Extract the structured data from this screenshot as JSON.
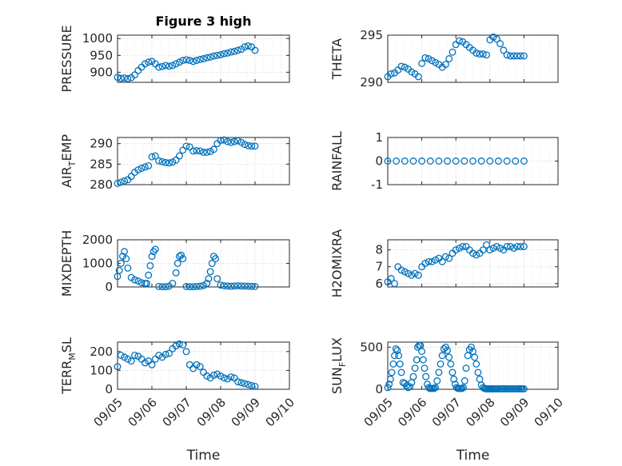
{
  "figure": {
    "title": "Figure 3 high",
    "xlabel": "Time",
    "x_ticks": [
      "09/05",
      "09/06",
      "09/07",
      "09/08",
      "09/09",
      "09/10"
    ],
    "marker_color": "#0072BD"
  },
  "chart_data": [
    {
      "type": "scatter",
      "marker": "circle",
      "title": "Figure 3 high",
      "ylabel": "PRESSURE",
      "ylim": [
        870,
        1010
      ],
      "yticks": [
        "900",
        "950",
        "1000"
      ],
      "xlim": [
        "09/05",
        "09/10"
      ],
      "grid": true,
      "x": [
        0.0,
        0.1,
        0.2,
        0.3,
        0.4,
        0.5,
        0.6,
        0.7,
        0.8,
        0.9,
        1.0,
        1.1,
        1.2,
        1.3,
        1.4,
        1.5,
        1.6,
        1.7,
        1.8,
        1.9,
        2.0,
        2.1,
        2.2,
        2.3,
        2.4,
        2.5,
        2.6,
        2.7,
        2.8,
        2.9,
        3.0,
        3.1,
        3.2,
        3.3,
        3.4,
        3.5,
        3.6,
        3.7,
        3.8,
        3.9,
        4.0
      ],
      "y": [
        885,
        882,
        883,
        881,
        884,
        892,
        905,
        915,
        925,
        930,
        932,
        925,
        915,
        917,
        920,
        918,
        920,
        925,
        930,
        935,
        937,
        935,
        932,
        935,
        938,
        940,
        943,
        945,
        948,
        950,
        952,
        955,
        957,
        960,
        962,
        965,
        968,
        975,
        978,
        975,
        965
      ]
    },
    {
      "type": "scatter",
      "marker": "circle",
      "ylabel": "THETA",
      "ylim": [
        290,
        295
      ],
      "yticks": [
        "290",
        "295"
      ],
      "xlim": [
        "09/05",
        "09/10"
      ],
      "grid": true,
      "x": [
        0.0,
        0.1,
        0.2,
        0.3,
        0.4,
        0.5,
        0.6,
        0.7,
        0.8,
        0.9,
        1.0,
        1.1,
        1.2,
        1.3,
        1.4,
        1.5,
        1.6,
        1.7,
        1.8,
        1.9,
        2.0,
        2.1,
        2.2,
        2.3,
        2.4,
        2.5,
        2.6,
        2.7,
        2.8,
        2.9,
        3.0,
        3.1,
        3.2,
        3.3,
        3.4,
        3.5,
        3.6,
        3.7,
        3.8,
        3.9,
        4.0
      ],
      "y": [
        290.6,
        290.9,
        291.0,
        291.3,
        291.7,
        291.6,
        291.4,
        291.1,
        290.9,
        290.6,
        292.0,
        292.6,
        292.5,
        292.3,
        292.1,
        291.9,
        291.6,
        291.9,
        292.5,
        293.2,
        294.0,
        294.4,
        294.3,
        294.0,
        293.7,
        293.4,
        293.1,
        293.0,
        293.0,
        292.9,
        294.5,
        294.8,
        294.6,
        294.1,
        293.4,
        292.9,
        292.8,
        292.8,
        292.8,
        292.8,
        292.8
      ]
    },
    {
      "type": "scatter",
      "marker": "circle",
      "ylabel": "AIR_TEMP",
      "ylim": [
        280,
        291.5
      ],
      "yticks": [
        "280",
        "285",
        "290"
      ],
      "xlim": [
        "09/05",
        "09/10"
      ],
      "grid": true,
      "x": [
        0.0,
        0.1,
        0.2,
        0.3,
        0.4,
        0.5,
        0.6,
        0.7,
        0.8,
        0.9,
        1.0,
        1.1,
        1.2,
        1.3,
        1.4,
        1.5,
        1.6,
        1.7,
        1.8,
        1.9,
        2.0,
        2.1,
        2.2,
        2.3,
        2.4,
        2.5,
        2.6,
        2.7,
        2.8,
        2.9,
        3.0,
        3.1,
        3.2,
        3.3,
        3.4,
        3.5,
        3.6,
        3.7,
        3.8,
        3.9,
        4.0
      ],
      "y": [
        280.3,
        280.6,
        280.9,
        281.2,
        282.0,
        283.0,
        283.6,
        284.0,
        284.3,
        284.6,
        286.8,
        287.0,
        285.8,
        285.6,
        285.4,
        285.3,
        285.5,
        286.0,
        287.0,
        288.4,
        289.4,
        289.2,
        288.2,
        288.3,
        288.2,
        287.9,
        287.9,
        288.1,
        288.6,
        290.0,
        290.8,
        290.9,
        290.5,
        290.3,
        290.5,
        290.7,
        290.3,
        289.8,
        289.5,
        289.4,
        289.4
      ]
    },
    {
      "type": "scatter",
      "marker": "circle",
      "ylabel": "RAINFALL",
      "ylim": [
        -1,
        1
      ],
      "yticks": [
        "-1",
        "0",
        "1"
      ],
      "xlim": [
        "09/05",
        "09/10"
      ],
      "grid": true,
      "x": [
        0.0,
        0.25,
        0.5,
        0.75,
        1.0,
        1.25,
        1.5,
        1.75,
        2.0,
        2.25,
        2.5,
        2.75,
        3.0,
        3.25,
        3.5,
        3.75,
        4.0
      ],
      "y": [
        0,
        0,
        0,
        0,
        0,
        0,
        0,
        0,
        0,
        0,
        0,
        0,
        0,
        0,
        0,
        0,
        0
      ]
    },
    {
      "type": "scatter",
      "marker": "circle",
      "ylabel": "MIXDEPTH",
      "ylim": [
        0,
        2000
      ],
      "yticks": [
        "0",
        "1000",
        "2000"
      ],
      "xlim": [
        "09/05",
        "09/10"
      ],
      "grid": true,
      "x": [
        0.0,
        0.05,
        0.1,
        0.15,
        0.2,
        0.25,
        0.3,
        0.4,
        0.5,
        0.6,
        0.7,
        0.8,
        0.85,
        0.9,
        0.95,
        1.0,
        1.05,
        1.1,
        1.2,
        1.3,
        1.4,
        1.5,
        1.6,
        1.7,
        1.75,
        1.8,
        1.85,
        1.9,
        2.0,
        2.1,
        2.2,
        2.3,
        2.4,
        2.5,
        2.6,
        2.65,
        2.7,
        2.75,
        2.8,
        2.85,
        2.9,
        3.0,
        3.1,
        3.2,
        3.3,
        3.4,
        3.5,
        3.6,
        3.7,
        3.8,
        3.9,
        4.0
      ],
      "y": [
        450,
        700,
        1000,
        1300,
        1500,
        1200,
        800,
        400,
        300,
        250,
        180,
        150,
        150,
        500,
        900,
        1300,
        1500,
        1600,
        20,
        10,
        10,
        30,
        150,
        600,
        1000,
        1300,
        1350,
        1200,
        20,
        10,
        10,
        20,
        30,
        60,
        150,
        350,
        650,
        1000,
        1300,
        1200,
        350,
        80,
        50,
        40,
        30,
        40,
        50,
        40,
        40,
        30,
        25,
        20
      ]
    },
    {
      "type": "scatter",
      "marker": "circle",
      "ylabel": "H2OMIXRA",
      "ylim": [
        5.8,
        8.6
      ],
      "yticks": [
        "6",
        "7",
        "8"
      ],
      "xlim": [
        "09/05",
        "09/10"
      ],
      "grid": true,
      "x": [
        0.0,
        0.1,
        0.2,
        0.3,
        0.4,
        0.5,
        0.6,
        0.7,
        0.8,
        0.9,
        1.0,
        1.1,
        1.2,
        1.3,
        1.4,
        1.5,
        1.6,
        1.7,
        1.8,
        1.9,
        2.0,
        2.1,
        2.2,
        2.3,
        2.4,
        2.5,
        2.6,
        2.7,
        2.8,
        2.9,
        3.0,
        3.1,
        3.2,
        3.3,
        3.4,
        3.5,
        3.6,
        3.7,
        3.8,
        3.9,
        4.0
      ],
      "y": [
        6.1,
        6.3,
        6.0,
        7.0,
        6.8,
        6.7,
        6.6,
        6.5,
        6.6,
        6.5,
        7.0,
        7.2,
        7.3,
        7.3,
        7.4,
        7.5,
        7.3,
        7.6,
        7.5,
        7.8,
        8.0,
        8.1,
        8.2,
        8.2,
        8.0,
        7.8,
        7.7,
        7.8,
        8.0,
        8.3,
        8.0,
        8.1,
        8.2,
        8.1,
        8.0,
        8.2,
        8.2,
        8.1,
        8.2,
        8.2,
        8.2
      ]
    },
    {
      "type": "scatter",
      "marker": "circle",
      "ylabel": "TERR_MSL",
      "ylim": [
        0,
        250
      ],
      "yticks": [
        "0",
        "100",
        "200"
      ],
      "xlim": [
        "09/05",
        "09/10"
      ],
      "grid": true,
      "x": [
        0.0,
        0.1,
        0.2,
        0.3,
        0.4,
        0.5,
        0.6,
        0.7,
        0.8,
        0.9,
        1.0,
        1.1,
        1.2,
        1.3,
        1.4,
        1.5,
        1.6,
        1.7,
        1.8,
        1.9,
        2.0,
        2.1,
        2.2,
        2.3,
        2.4,
        2.5,
        2.6,
        2.7,
        2.8,
        2.9,
        3.0,
        3.1,
        3.2,
        3.3,
        3.4,
        3.5,
        3.6,
        3.7,
        3.8,
        3.9,
        4.0
      ],
      "y": [
        120,
        180,
        170,
        160,
        150,
        180,
        175,
        160,
        140,
        150,
        130,
        160,
        180,
        170,
        185,
        190,
        215,
        230,
        240,
        235,
        200,
        130,
        110,
        130,
        120,
        90,
        70,
        60,
        75,
        80,
        70,
        60,
        55,
        65,
        60,
        40,
        35,
        30,
        25,
        20,
        15
      ]
    },
    {
      "type": "scatter",
      "marker": "circle",
      "ylabel": "SUN_FLUX",
      "ylim": [
        0,
        560
      ],
      "yticks": [
        "0",
        "500"
      ],
      "xlim": [
        "09/05",
        "09/10"
      ],
      "grid": true,
      "x": [
        0.0,
        0.04,
        0.08,
        0.12,
        0.16,
        0.2,
        0.24,
        0.28,
        0.32,
        0.36,
        0.4,
        0.45,
        0.5,
        0.55,
        0.6,
        0.65,
        0.7,
        0.75,
        0.8,
        0.85,
        0.88,
        0.92,
        0.96,
        1.0,
        1.04,
        1.08,
        1.12,
        1.16,
        1.2,
        1.24,
        1.28,
        1.32,
        1.36,
        1.4,
        1.45,
        1.5,
        1.55,
        1.6,
        1.65,
        1.7,
        1.75,
        1.8,
        1.85,
        1.9,
        1.94,
        1.98,
        2.02,
        2.06,
        2.1,
        2.14,
        2.18,
        2.22,
        2.26,
        2.3,
        2.35,
        2.4,
        2.45,
        2.5,
        2.55,
        2.6,
        2.65,
        2.7,
        2.75,
        2.8,
        2.84,
        2.88,
        2.92,
        2.96,
        3.0,
        3.04,
        3.08,
        3.12,
        3.16,
        3.2,
        3.25,
        3.3,
        3.35,
        3.4,
        3.45,
        3.5,
        3.55,
        3.6,
        3.65,
        3.7,
        3.75,
        3.8,
        3.85,
        3.9,
        3.95,
        4.0
      ],
      "y": [
        20,
        60,
        120,
        200,
        300,
        400,
        480,
        460,
        400,
        300,
        200,
        80,
        70,
        40,
        20,
        30,
        80,
        150,
        250,
        350,
        500,
        520,
        520,
        450,
        350,
        250,
        150,
        60,
        20,
        10,
        10,
        10,
        10,
        20,
        100,
        200,
        300,
        400,
        480,
        500,
        460,
        380,
        300,
        200,
        120,
        60,
        20,
        10,
        10,
        10,
        10,
        20,
        100,
        250,
        400,
        470,
        500,
        450,
        380,
        300,
        200,
        120,
        50,
        20,
        10,
        5,
        5,
        5,
        5,
        5,
        5,
        5,
        5,
        5,
        5,
        5,
        5,
        5,
        5,
        5,
        5,
        5,
        5,
        5,
        5,
        5,
        5,
        5,
        5,
        5
      ]
    }
  ]
}
